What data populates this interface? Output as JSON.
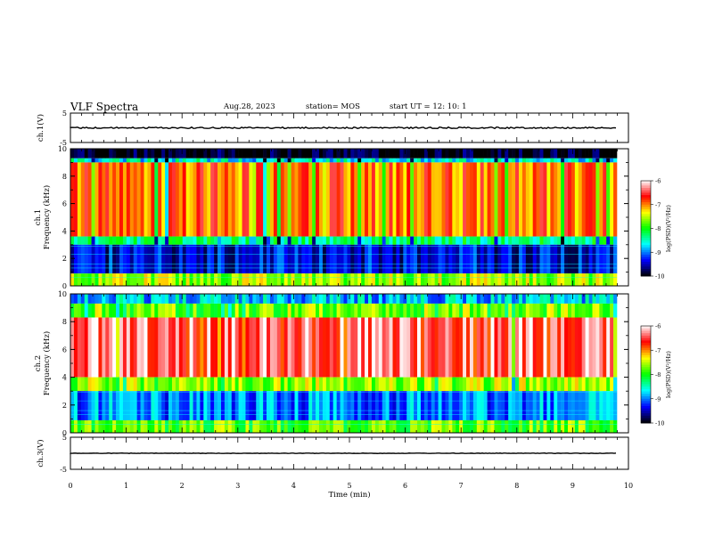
{
  "header": {
    "title": "VLF Spectra",
    "date": "Aug.28, 2023",
    "station": "station= MOS",
    "start": "start  UT =   12: 10: 1"
  },
  "chart_data": [
    {
      "type": "line",
      "panel": "ch1-waveform",
      "ylabel": "ch.1(V)",
      "ylim": [
        -5,
        5
      ],
      "yticks": [
        "5",
        "-5"
      ],
      "x": [
        0,
        10
      ],
      "y_level": 0
    },
    {
      "type": "heatmap",
      "panel": "ch1-spectrogram",
      "ylabel": "ch.1\nFrequency (kHz)",
      "ylabel_top": "ch.1",
      "ylabel_main": "Frequency (kHz)",
      "ylim": [
        0,
        10
      ],
      "yticks": [
        "0",
        "2",
        "4",
        "6",
        "8",
        "10"
      ],
      "xlim": [
        0,
        10
      ],
      "colorbar": {
        "label": "log(PSD)(V²/Hz)",
        "ticks": [
          "-6",
          "-7",
          "-8",
          "-9",
          "-10"
        ],
        "range": [
          -10,
          -6
        ]
      },
      "bands": [
        {
          "from": 9.3,
          "to": 10,
          "level": -10.0
        },
        {
          "from": 9.0,
          "to": 9.3,
          "level": -8.6
        },
        {
          "from": 3.6,
          "to": 9.0,
          "level": -6.9
        },
        {
          "from": 3.0,
          "to": 3.6,
          "level": -8.3
        },
        {
          "from": 0.9,
          "to": 3.0,
          "level": -9.4
        },
        {
          "from": 0.0,
          "to": 0.9,
          "level": -7.6
        }
      ]
    },
    {
      "type": "heatmap",
      "panel": "ch2-spectrogram",
      "ylabel_top": "ch.2",
      "ylabel_main": "Frequency (kHz)",
      "ylim": [
        0,
        10
      ],
      "yticks": [
        "0",
        "2",
        "4",
        "6",
        "8",
        "10"
      ],
      "xlim": [
        0,
        10
      ],
      "colorbar": {
        "label": "log(PSD)(V²/Hz)",
        "ticks": [
          "-6",
          "-7",
          "-8",
          "-9",
          "-10"
        ],
        "range": [
          -10,
          -6
        ]
      },
      "bands": [
        {
          "from": 9.3,
          "to": 10,
          "level": -8.8
        },
        {
          "from": 8.3,
          "to": 9.3,
          "level": -7.7
        },
        {
          "from": 4.0,
          "to": 8.3,
          "level": -6.4
        },
        {
          "from": 3.0,
          "to": 4.0,
          "level": -7.6
        },
        {
          "from": 0.9,
          "to": 3.0,
          "level": -9.0
        },
        {
          "from": 0.0,
          "to": 0.9,
          "level": -7.8
        }
      ]
    },
    {
      "type": "line",
      "panel": "ch3-waveform",
      "ylabel": "ch.3(V)",
      "ylim": [
        -5,
        5
      ],
      "yticks": [
        "5",
        "-5"
      ],
      "x": [
        0,
        10
      ],
      "y_level": 0
    }
  ],
  "xaxis": {
    "label": "Time (min)",
    "ticks": [
      "0",
      "1",
      "2",
      "3",
      "4",
      "5",
      "6",
      "7",
      "8",
      "9",
      "10"
    ],
    "range": [
      0,
      10
    ]
  },
  "colormap": [
    "#000000",
    "#0000ff",
    "#00ffff",
    "#00ff00",
    "#ffff00",
    "#ff0000",
    "#ffffff"
  ]
}
